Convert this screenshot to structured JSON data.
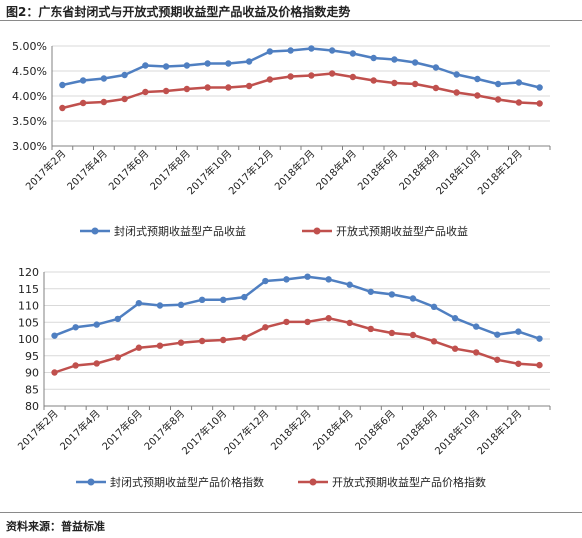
{
  "figure": {
    "title": "图2：广东省封闭式与开放式预期收益型产品收益及价格指数走势",
    "source": "资料来源：普益标准"
  },
  "colors": {
    "blue": "#4F7FC1",
    "red": "#C0504D",
    "grid": "#D9D9D9",
    "axis": "#808080"
  },
  "chart_data": [
    {
      "type": "line",
      "categories": [
        "2017年2月",
        "2017年3月",
        "2017年4月",
        "2017年5月",
        "2017年6月",
        "2017年7月",
        "2017年8月",
        "2017年9月",
        "2017年10月",
        "2017年11月",
        "2017年12月",
        "2018年1月",
        "2018年2月",
        "2018年3月",
        "2018年4月",
        "2018年5月",
        "2018年6月",
        "2018年7月",
        "2018年8月",
        "2018年9月",
        "2018年10月",
        "2018年11月",
        "2018年12月",
        "2019年1月"
      ],
      "tick_labels": [
        "2017年2月",
        "2017年4月",
        "2017年6月",
        "2017年8月",
        "2017年10月",
        "2017年12月",
        "2018年2月",
        "2018年4月",
        "2018年6月",
        "2018年8月",
        "2018年10月",
        "2018年12月"
      ],
      "y_tick_labels": [
        "3.00%",
        "3.50%",
        "4.00%",
        "4.50%",
        "5.00%"
      ],
      "ylim": [
        3.0,
        5.0
      ],
      "grid": true,
      "legend_position": "bottom",
      "series": [
        {
          "name": "封闭式预期收益型产品收益",
          "values": [
            4.22,
            4.31,
            4.35,
            4.42,
            4.61,
            4.59,
            4.61,
            4.65,
            4.65,
            4.69,
            4.89,
            4.91,
            4.95,
            4.91,
            4.85,
            4.76,
            4.73,
            4.67,
            4.57,
            4.43,
            4.34,
            4.24,
            4.27,
            4.17
          ]
        },
        {
          "name": "开放式预期收益型产品收益",
          "values": [
            3.76,
            3.86,
            3.88,
            3.94,
            4.08,
            4.1,
            4.14,
            4.17,
            4.17,
            4.2,
            4.33,
            4.39,
            4.41,
            4.45,
            4.38,
            4.31,
            4.26,
            4.24,
            4.16,
            4.07,
            4.01,
            3.93,
            3.87,
            3.85
          ]
        }
      ]
    },
    {
      "type": "line",
      "categories": [
        "2017年2月",
        "2017年3月",
        "2017年4月",
        "2017年5月",
        "2017年6月",
        "2017年7月",
        "2017年8月",
        "2017年9月",
        "2017年10月",
        "2017年11月",
        "2017年12月",
        "2018年1月",
        "2018年2月",
        "2018年3月",
        "2018年4月",
        "2018年5月",
        "2018年6月",
        "2018年7月",
        "2018年8月",
        "2018年9月",
        "2018年10月",
        "2018年11月",
        "2018年12月",
        "2019年1月"
      ],
      "tick_labels": [
        "2017年2月",
        "2017年4月",
        "2017年6月",
        "2017年8月",
        "2017年10月",
        "2017年12月",
        "2018年2月",
        "2018年4月",
        "2018年6月",
        "2018年8月",
        "2018年10月",
        "2018年12月"
      ],
      "y_tick_labels": [
        "80",
        "85",
        "90",
        "95",
        "100",
        "105",
        "110",
        "115",
        "120"
      ],
      "ylim": [
        80,
        120
      ],
      "grid": true,
      "legend_position": "bottom",
      "series": [
        {
          "name": "封闭式预期收益型产品价格指数",
          "values": [
            101.0,
            103.5,
            104.3,
            106.0,
            110.7,
            110.0,
            110.2,
            111.7,
            111.7,
            112.5,
            117.3,
            117.8,
            118.6,
            117.8,
            116.2,
            114.1,
            113.3,
            112.1,
            109.6,
            106.2,
            103.7,
            101.3,
            102.2,
            100.1
          ]
        },
        {
          "name": "开放式预期收益型产品价格指数",
          "values": [
            90.0,
            92.1,
            92.7,
            94.5,
            97.4,
            98.0,
            98.9,
            99.4,
            99.7,
            100.4,
            103.5,
            105.1,
            105.1,
            106.2,
            104.8,
            103.0,
            101.8,
            101.2,
            99.3,
            97.1,
            96.0,
            93.8,
            92.6,
            92.2
          ]
        }
      ]
    }
  ]
}
